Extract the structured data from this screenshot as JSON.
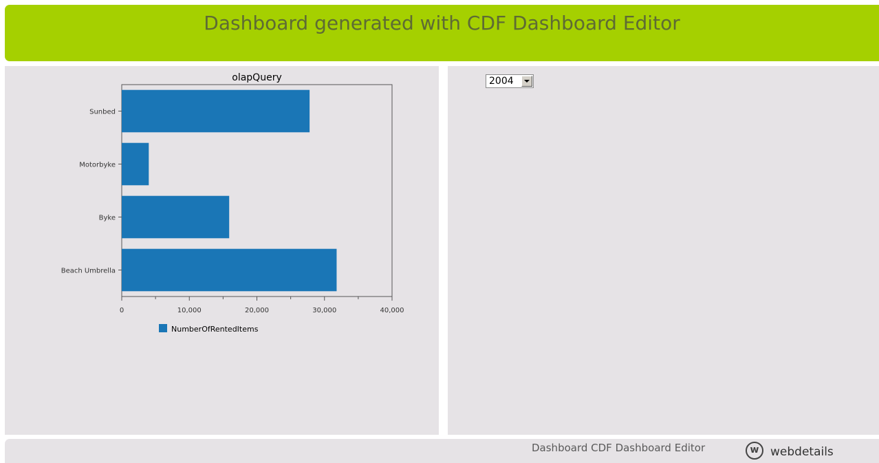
{
  "header": {
    "title": "Dashboard generated with CDF Dashboard Editor"
  },
  "year_select": {
    "value": "2004"
  },
  "footer": {
    "label": "Dashboard CDF Dashboard Editor",
    "logo_glyph": "w",
    "brand": "webdetails"
  },
  "colors": {
    "bar": "#1a76b6",
    "header": "#a5d000",
    "panel": "#e6e3e6"
  },
  "chart_data": {
    "type": "bar",
    "orientation": "horizontal",
    "title": "olapQuery",
    "categories": [
      "Sunbed",
      "Motorbyke",
      "Byke",
      "Beach Umbrella"
    ],
    "series": [
      {
        "name": "NumberOfRentedItems",
        "values": [
          27800,
          4000,
          15900,
          31800
        ]
      }
    ],
    "xlim": [
      0,
      40000
    ],
    "xticks": [
      "0",
      "10,000",
      "20,000",
      "30,000",
      "40,000"
    ],
    "xlabel": "",
    "ylabel": "",
    "grid": false,
    "legend": "bottom"
  }
}
